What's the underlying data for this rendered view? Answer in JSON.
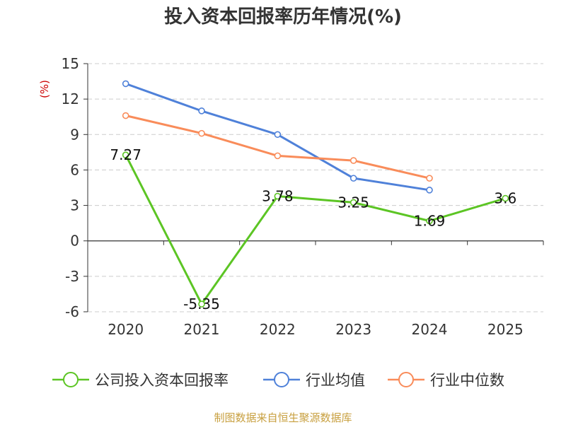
{
  "chart_data": {
    "type": "line",
    "title": "投入资本回报率历年情况(%)",
    "ylabel": "(%)",
    "xlabel": "",
    "categories": [
      "2020",
      "2021",
      "2022",
      "2023",
      "2024",
      "2025"
    ],
    "ylim": [
      -6,
      15
    ],
    "yticks": [
      -6,
      -3,
      0,
      3,
      6,
      9,
      12,
      15
    ],
    "grid": true,
    "legend_position": "bottom",
    "series": [
      {
        "name": "公司投入资本回报率",
        "color": "#5cc524",
        "values": [
          7.27,
          -5.35,
          3.78,
          3.25,
          1.69,
          3.6
        ],
        "labels": [
          "7.27",
          "-5.35",
          "3.78",
          "3.25",
          "1.69",
          "3.6"
        ]
      },
      {
        "name": "行业均值",
        "color": "#4f81d9",
        "values": [
          13.3,
          11.0,
          9.0,
          5.3,
          4.3,
          null
        ]
      },
      {
        "name": "行业中位数",
        "color": "#f98c5a",
        "values": [
          10.6,
          9.1,
          7.2,
          6.8,
          5.3,
          null
        ]
      }
    ]
  },
  "footer": {
    "source": "制图数据来自恒生聚源数据库",
    "source_color": "#c8a040"
  },
  "colors": {
    "title": "#333333",
    "axis": "#333333",
    "grid": "#cccccc",
    "ylabel": "#cc0000"
  }
}
